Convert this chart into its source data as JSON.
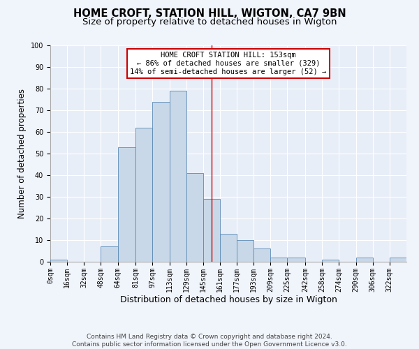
{
  "title": "HOME CROFT, STATION HILL, WIGTON, CA7 9BN",
  "subtitle": "Size of property relative to detached houses in Wigton",
  "xlabel": "Distribution of detached houses by size in Wigton",
  "ylabel": "Number of detached properties",
  "bins": [
    0,
    16,
    32,
    48,
    64,
    81,
    97,
    113,
    129,
    145,
    161,
    177,
    193,
    209,
    225,
    242,
    258,
    274,
    290,
    306,
    322,
    338
  ],
  "bin_labels": [
    "0sqm",
    "16sqm",
    "32sqm",
    "48sqm",
    "64sqm",
    "81sqm",
    "97sqm",
    "113sqm",
    "129sqm",
    "145sqm",
    "161sqm",
    "177sqm",
    "193sqm",
    "209sqm",
    "225sqm",
    "242sqm",
    "258sqm",
    "274sqm",
    "290sqm",
    "306sqm",
    "322sqm"
  ],
  "values": [
    1,
    0,
    0,
    7,
    53,
    62,
    74,
    79,
    41,
    29,
    13,
    10,
    6,
    2,
    2,
    0,
    1,
    0,
    2,
    0,
    2
  ],
  "bar_color": "#c8d8e8",
  "bar_edge_color": "#5a8ab5",
  "property_size": 153,
  "vline_color": "#cc0000",
  "annotation_line1": "HOME CROFT STATION HILL: 153sqm",
  "annotation_line2": "← 86% of detached houses are smaller (329)",
  "annotation_line3": "14% of semi-detached houses are larger (52) →",
  "annotation_box_color": "#ffffff",
  "annotation_box_edge": "#cc0000",
  "ylim": [
    0,
    100
  ],
  "yticks": [
    0,
    10,
    20,
    30,
    40,
    50,
    60,
    70,
    80,
    90,
    100
  ],
  "fig_background": "#f0f4fb",
  "plot_background": "#e8eef8",
  "grid_color": "#ffffff",
  "footer_line1": "Contains HM Land Registry data © Crown copyright and database right 2024.",
  "footer_line2": "Contains public sector information licensed under the Open Government Licence v3.0.",
  "title_fontsize": 10.5,
  "subtitle_fontsize": 9.5,
  "xlabel_fontsize": 9,
  "ylabel_fontsize": 8.5,
  "tick_fontsize": 7,
  "annotation_fontsize": 7.5,
  "footer_fontsize": 6.5
}
